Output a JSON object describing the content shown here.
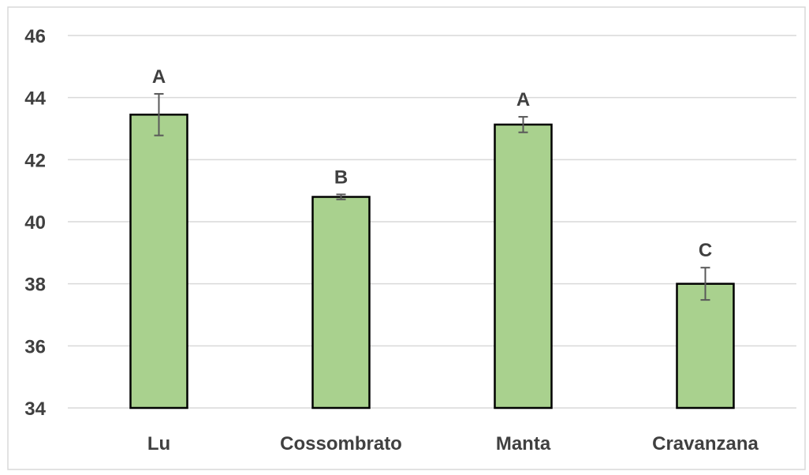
{
  "chart_data": {
    "type": "bar",
    "categories": [
      "Lu",
      "Cossombrato",
      "Manta",
      "Cravanzana"
    ],
    "values": [
      43.45,
      40.8,
      43.13,
      38.0
    ],
    "error": [
      0.67,
      0.08,
      0.25,
      0.52
    ],
    "labels": [
      "A",
      "B",
      "A",
      "C"
    ],
    "ylim": [
      34,
      46
    ],
    "yticks": [
      "34",
      "36",
      "38",
      "40",
      "42",
      "44",
      "46"
    ],
    "grid": true,
    "title": "",
    "xlabel": "",
    "ylabel": "",
    "colors": {
      "bar_fill": "#a9d18e",
      "bar_stroke": "#000000",
      "grid": "#d9d9d9",
      "error_bar": "#595959",
      "text": "#404040"
    }
  }
}
